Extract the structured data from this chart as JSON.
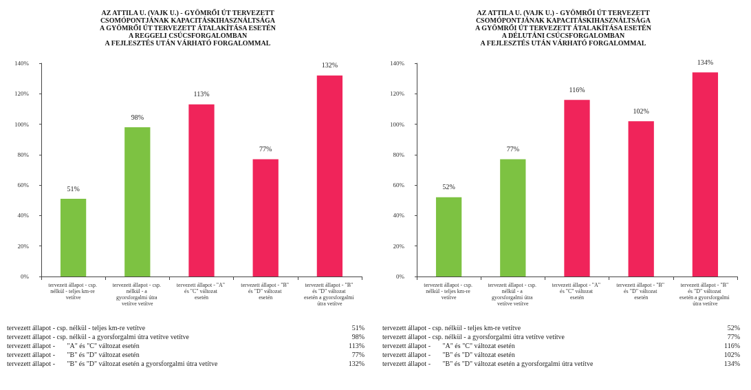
{
  "chart_data": [
    {
      "type": "bar",
      "title": "AZ ATTILA U. (VAJK U.) - GYÖMRŐI ÚT TERVEZETT\nCSOMÓPONTJÁNAK KAPACITÁSKIHASZNÁLTSÁGA\nA GYÖMRŐI ÚT TERVEZETT ÁTALAKÍTÁSA ESETÉN\nA REGGELI CSÚCSFORGALOMBAN\nA FEJLESZTÉS UTÁN VÁRHATÓ FORGALOMMAL",
      "categories": [
        "tervezett állapot - csp. nélkül - teljes km-re vetítve",
        "tervezett állapot - csp. nélkül - a gyorsforgalmi útra vetítve vetítve",
        "tervezett állapot - \"A\" és \"C\" változat esetén",
        "tervezett állapot - \"B\" és \"D\" változat esetén",
        "tervezett állapot - \"B\" és \"D\" változat esetén a gyorsforgalmi útra vetítve"
      ],
      "values": [
        51,
        98,
        113,
        77,
        132
      ],
      "colors": [
        "#7dc242",
        "#7dc242",
        "#f0245a",
        "#f0245a",
        "#f0245a"
      ],
      "value_labels": [
        "51%",
        "98%",
        "113%",
        "77%",
        "132%"
      ],
      "ylim": [
        0,
        140
      ],
      "yticks": [
        {
          "value": 0,
          "label": "0%"
        },
        {
          "value": 20,
          "label": "20%"
        },
        {
          "value": 40,
          "label": "40%"
        },
        {
          "value": 60,
          "label": "60%"
        },
        {
          "value": 80,
          "label": "80%"
        },
        {
          "value": 100,
          "label": "100%"
        },
        {
          "value": 120,
          "label": "120%"
        },
        {
          "value": 140,
          "label": "140%"
        }
      ],
      "annotations": [
        "tervezett állapot - csp. nélkül - teljes km-re vetítve",
        "tervezett állapot - csp. nélkül - a gyorsforgalmi útra vetítve vetítve",
        "tervezett állapot -       \"A\" és \"C\" változat esetén",
        "tervezett állapot -       \"B\" és \"D\" változat esetén",
        "tervezett állapot -       \"B\" és \"D\" változat esetén a gyorsforgalmi útra vetítve"
      ],
      "grid": false
    },
    {
      "type": "bar",
      "title": "AZ ATTILA U. (VAJK U.) - GYÖMRŐI ÚT TERVEZETT\nCSOMÓPONTJÁNAK KAPACITÁSKIHASZNÁLTSÁGA\nA GYÖMRŐI ÚT TERVEZETT ÁTALAKÍTÁSA ESETÉN\nA DÉLUTÁNI CSÚCSFORGALOMBAN\nA FEJLESZTÉS UTÁN VÁRHATÓ FORGALOMMAL",
      "categories": [
        "tervezett állapot - csp. nélkül - teljes km-re vetítve",
        "tervezett állapot - csp. nélkül - a gyorsforgalmi útra vetítve vetítve",
        "tervezett állapot - \"A\" és \"C\" változat esetén",
        "tervezett állapot - \"B\" és \"D\" változat esetén",
        "tervezett állapot - \"B\" és \"D\" változat esetén a gyorsforgalmi útra vetítve"
      ],
      "values": [
        52,
        77,
        116,
        102,
        134
      ],
      "colors": [
        "#7dc242",
        "#7dc242",
        "#f0245a",
        "#f0245a",
        "#f0245a"
      ],
      "value_labels": [
        "52%",
        "77%",
        "116%",
        "102%",
        "134%"
      ],
      "ylim": [
        0,
        140
      ],
      "yticks": [
        {
          "value": 0,
          "label": "0%"
        },
        {
          "value": 20,
          "label": "20%"
        },
        {
          "value": 40,
          "label": "40%"
        },
        {
          "value": 60,
          "label": "60%"
        },
        {
          "value": 80,
          "label": "80%"
        },
        {
          "value": 100,
          "label": "100%"
        },
        {
          "value": 120,
          "label": "120%"
        },
        {
          "value": 140,
          "label": "140%"
        }
      ],
      "annotations": [
        "tervezett állapot - csp. nélkül - teljes km-re vetítve",
        "tervezett állapot - csp. nélkül - a gyorsforgalmi útra vetítve vetítve",
        "tervezett állapot -       \"A\" és \"C\" változat esetén",
        "tervezett állapot -       \"B\" és \"D\" változat esetén",
        "tervezett állapot -       \"B\" és \"D\" változat esetén a gyorsforgalmi útra vetítve"
      ],
      "grid": false
    }
  ]
}
